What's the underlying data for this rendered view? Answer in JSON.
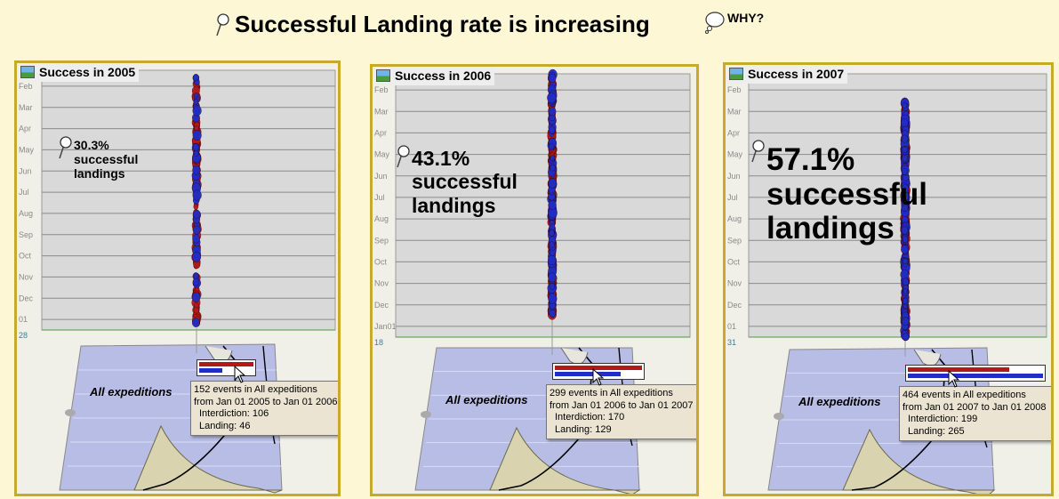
{
  "header": {
    "title": "Successful Landing rate is increasing",
    "why_label": "WHY?",
    "pin_icon": "pushpin-icon",
    "why_icon": "thought-bubble-icon"
  },
  "colors": {
    "interdiction": "#b11a1a",
    "landing": "#1f2ec5",
    "frame": "#c9a92a",
    "background": "#fdf7d6"
  },
  "chart_data": [
    {
      "type": "scatter",
      "title": "Success in 2005",
      "categories": [
        "Feb",
        "Mar",
        "Apr",
        "May",
        "Jun",
        "Jul",
        "Aug",
        "Sep",
        "Oct",
        "Nov",
        "Dec",
        "01"
      ],
      "bottom_tick": "28",
      "series": [
        {
          "name": "Interdiction",
          "count": 106
        },
        {
          "name": "Landing",
          "count": 46
        }
      ],
      "total_events": 152,
      "success_percent": 30.3,
      "annotation": [
        "30.3%",
        "successful",
        "landings"
      ],
      "region_label": "All expeditions",
      "tooltip": {
        "line1": "152 events in All expeditions",
        "line2": "from Jan 01 2005 to Jan 01 2006",
        "line3": "Interdiction: 106",
        "line4": "Landing: 46"
      }
    },
    {
      "type": "scatter",
      "title": "Success in 2006",
      "categories": [
        "Feb",
        "Mar",
        "Apr",
        "May",
        "Jun",
        "Jul",
        "Aug",
        "Sep",
        "Oct",
        "Nov",
        "Dec",
        "Jan01"
      ],
      "bottom_tick": "18",
      "series": [
        {
          "name": "Interdiction",
          "count": 170
        },
        {
          "name": "Landing",
          "count": 129
        }
      ],
      "total_events": 299,
      "success_percent": 43.1,
      "annotation": [
        "43.1%",
        "successful",
        "landings"
      ],
      "region_label": "All expeditions",
      "tooltip": {
        "line1": "299 events in All expeditions",
        "line2": "from Jan 01 2006 to Jan 01 2007",
        "line3": "Interdiction: 170",
        "line4": "Landing: 129"
      }
    },
    {
      "type": "scatter",
      "title": "Success in 2007",
      "categories": [
        "Feb",
        "Mar",
        "Apr",
        "May",
        "Jun",
        "Jul",
        "Aug",
        "Sep",
        "Oct",
        "Nov",
        "Dec",
        "01"
      ],
      "bottom_tick": "31",
      "series": [
        {
          "name": "Interdiction",
          "count": 199
        },
        {
          "name": "Landing",
          "count": 265
        }
      ],
      "total_events": 464,
      "success_percent": 57.1,
      "annotation": [
        "57.1%",
        "successful",
        "landings"
      ],
      "region_label": "All expeditions",
      "tooltip": {
        "line1": "464 events in All expeditions",
        "line2": "from Jan 01 2007 to Jan 01 2008",
        "line3": "Interdiction: 199",
        "line4": "Landing: 265"
      }
    }
  ]
}
